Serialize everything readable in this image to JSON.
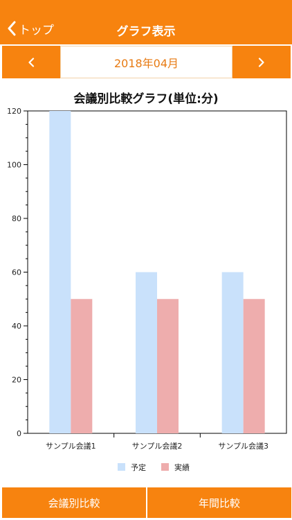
{
  "nav": {
    "back_label": "トップ",
    "title": "グラフ表示"
  },
  "month_selector": {
    "label": "2018年04月",
    "prev_icon": "chevron-left-icon",
    "next_icon": "chevron-right-icon"
  },
  "chart_data": {
    "type": "bar",
    "title": "会議別比較グラフ(単位:分)",
    "categories": [
      "サンプル会議1",
      "サンプル会議2",
      "サンプル会議3"
    ],
    "series": [
      {
        "name": "予定",
        "values": [
          120,
          60,
          60
        ],
        "color": "#c9e1fb"
      },
      {
        "name": "実績",
        "values": [
          50,
          50,
          50
        ],
        "color": "#eeadad"
      }
    ],
    "ylim": [
      0,
      120
    ],
    "yticks": [
      0,
      20,
      40,
      60,
      80,
      100,
      120
    ],
    "grid": false,
    "legend": "bottom"
  },
  "tabs": {
    "left_label": "会議別比較",
    "right_label": "年間比較"
  },
  "colors": {
    "accent": "#f7830f",
    "month_text": "#e77a12"
  }
}
